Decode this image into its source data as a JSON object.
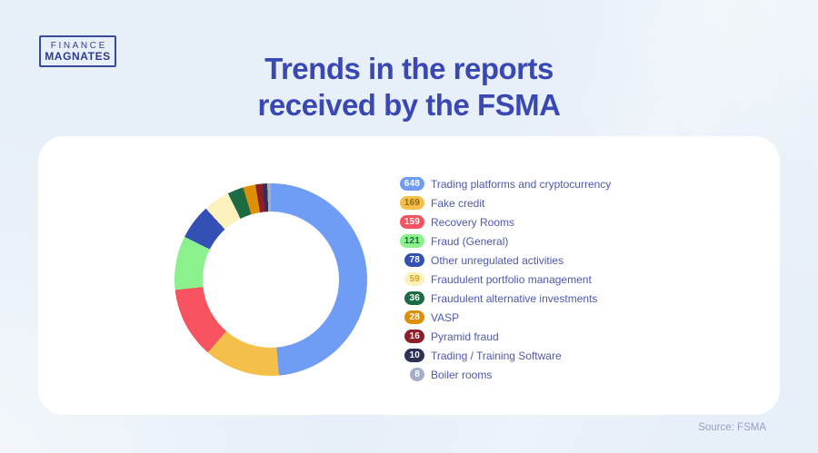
{
  "page": {
    "background_color": "#e7eff8",
    "source_note": "Source: FSMA"
  },
  "logo": {
    "line1": "FINANCE",
    "line2": "MAGNATES"
  },
  "header": {
    "title_line1": "Trends in the reports",
    "title_line2": "received by the FSMA",
    "title_color": "#3a48b4"
  },
  "chart_data": {
    "type": "pie",
    "variant": "donut",
    "title": "Trends in the reports received by the FSMA",
    "total": 1332,
    "start_angle_deg": 0,
    "direction": "clockwise",
    "hole_ratio": 0.71,
    "legend_position": "right",
    "items": [
      {
        "label": "Trading platforms and cryptocurrency",
        "value": 648,
        "color": "#6f9cf4",
        "badge_text_color": "#ffffff"
      },
      {
        "label": "Fake credit",
        "value": 169,
        "color": "#f5c04a",
        "badge_text_color": "#8f6a1a"
      },
      {
        "label": "Recovery Rooms",
        "value": 159,
        "color": "#f6525f",
        "badge_text_color": "#ffffff"
      },
      {
        "label": "Fraud (General)",
        "value": 121,
        "color": "#8bf18c",
        "badge_text_color": "#1d6b42"
      },
      {
        "label": "Other unregulated activities",
        "value": 78,
        "color": "#3350b4",
        "badge_text_color": "#ffffff"
      },
      {
        "label": "Fraudulent portfolio management",
        "value": 59,
        "color": "#fbf2bd",
        "badge_text_color": "#dfa013"
      },
      {
        "label": "Fraudulent alternative investments",
        "value": 36,
        "color": "#1d6b42",
        "badge_text_color": "#ffffff"
      },
      {
        "label": "VASP",
        "value": 28,
        "color": "#dd8f07",
        "badge_text_color": "#ffffff"
      },
      {
        "label": "Pyramid fraud",
        "value": 16,
        "color": "#8b1f2a",
        "badge_text_color": "#ffffff"
      },
      {
        "label": "Trading / Training Software",
        "value": 10,
        "color": "#2e3158",
        "badge_text_color": "#ffffff"
      },
      {
        "label": "Boiler rooms",
        "value": 8,
        "color": "#a6aec7",
        "badge_text_color": "#ffffff"
      }
    ]
  }
}
